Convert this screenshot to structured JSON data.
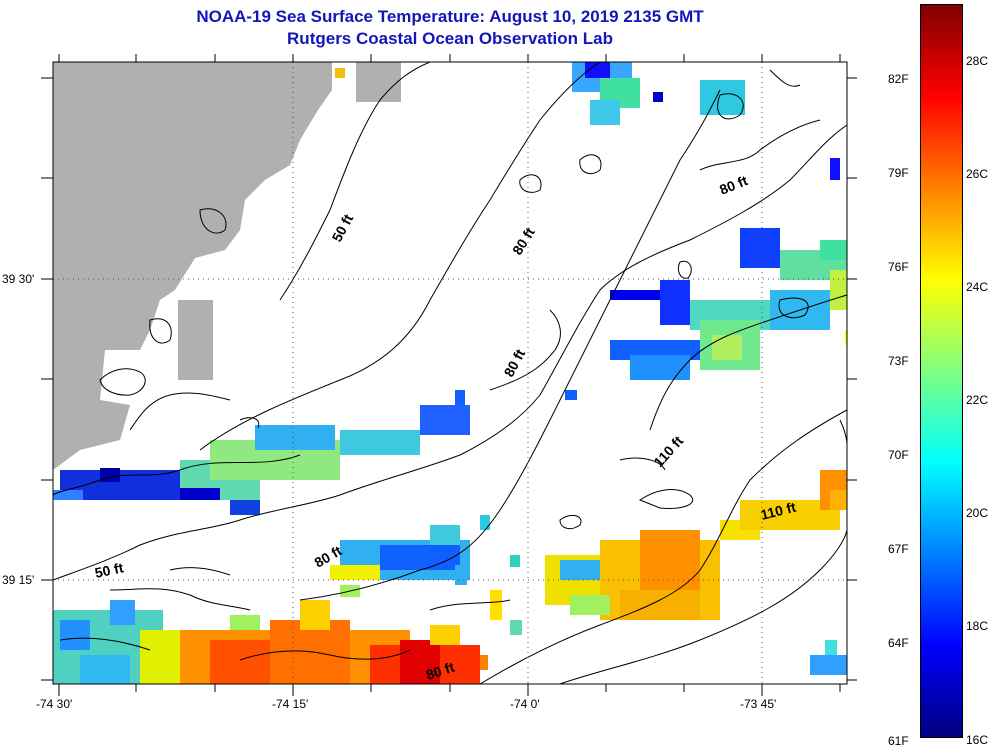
{
  "title": "NOAA-19 Sea Surface Temperature:  August 10, 2019 2135 GMT",
  "subtitle": "Rutgers Coastal Ocean Observation Lab",
  "x_ticks": [
    "-74 30'",
    "-74 15'",
    "-74 0'",
    "-73 45'"
  ],
  "y_ticks": [
    "39 30'",
    "39 15'"
  ],
  "contour_labels": [
    "50 ft",
    "80 ft",
    "80 ft",
    "80 ft",
    "80 ft",
    "110 ft",
    "110 ft",
    "50 ft",
    "80 ft"
  ],
  "colorbar": {
    "fahrenheit": [
      "82F",
      "79F",
      "76F",
      "73F",
      "70F",
      "67F",
      "64F",
      "61F"
    ],
    "celsius": [
      "28C",
      "26C",
      "24C",
      "22C",
      "20C",
      "18C",
      "16C"
    ],
    "min_c": 16,
    "max_c": 29,
    "colors": [
      "#00007f",
      "#0000ff",
      "#0080ff",
      "#00ffff",
      "#80ff80",
      "#ffff00",
      "#ff8000",
      "#ff0000",
      "#7f0000"
    ]
  },
  "land_color": "#b0b0b0"
}
